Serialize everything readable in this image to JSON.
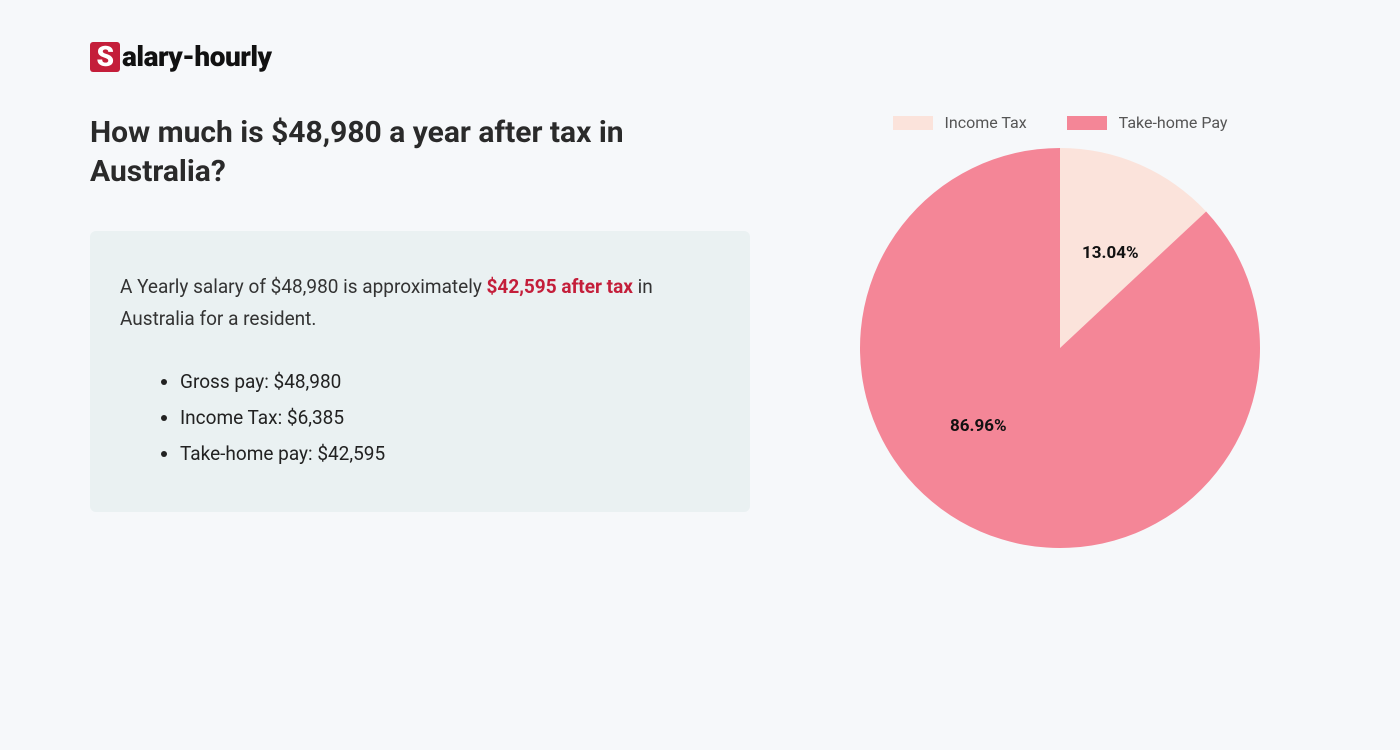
{
  "logo": {
    "badge_letter": "S",
    "rest": "alary-hourly"
  },
  "heading": "How much is $48,980 a year after tax in Australia?",
  "summary": {
    "pre": "A Yearly salary of $48,980 is approximately ",
    "highlight": "$42,595 after tax",
    "post": " in Australia for a resident."
  },
  "breakdown": [
    "Gross pay: $48,980",
    "Income Tax: $6,385",
    "Take-home pay: $42,595"
  ],
  "chart": {
    "type": "pie",
    "radius": 200,
    "background_color": "#f6f8fa",
    "slices": [
      {
        "label": "Income Tax",
        "value": 13.04,
        "color": "#fbe3db",
        "pct_text": "13.04%"
      },
      {
        "label": "Take-home Pay",
        "value": 86.96,
        "color": "#f48697",
        "pct_text": "86.96%"
      }
    ],
    "legend_swatch_w": 40,
    "legend_swatch_h": 14,
    "label_fontsize": 17,
    "label_fontweight": "700",
    "label_color": "#111111",
    "legend_font_color": "#555555"
  },
  "colors": {
    "brand_red": "#c41e3a",
    "info_box_bg": "#eaf1f2",
    "page_bg": "#f6f8fa",
    "heading_color": "#2a2a2a"
  }
}
